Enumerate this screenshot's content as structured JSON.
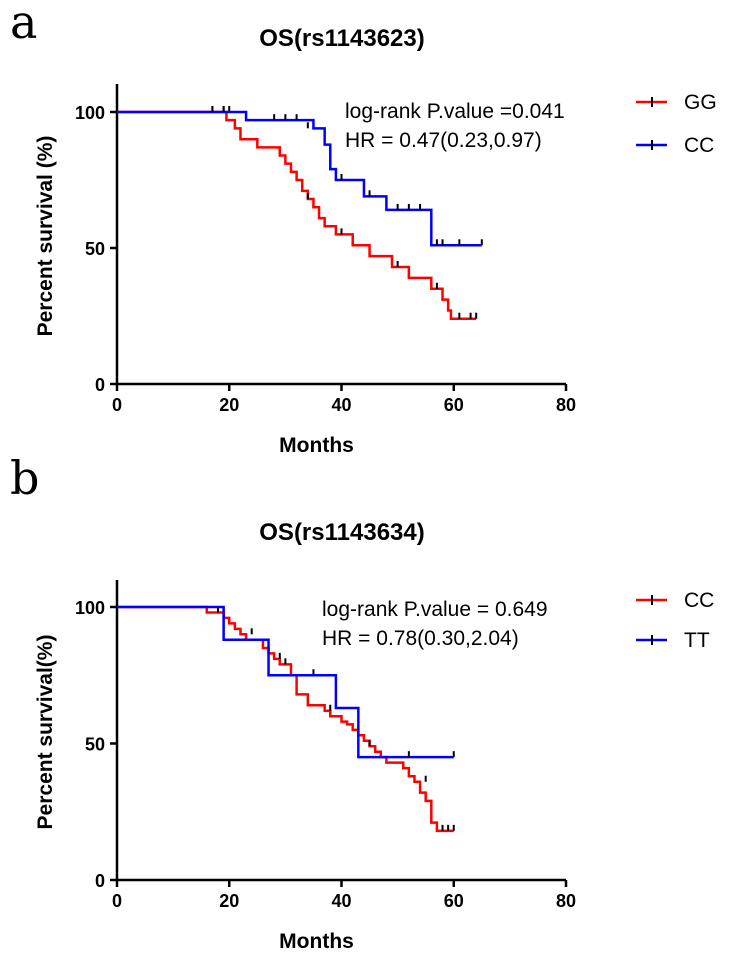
{
  "chart_data": [
    {
      "panel": "a",
      "type": "line",
      "title": "OS(rs1143623)",
      "xlabel": "Months",
      "ylabel": "Percent survival (%)",
      "xlim": [
        0,
        80
      ],
      "ylim": [
        0,
        100
      ],
      "xticks": [
        0,
        20,
        40,
        60,
        80
      ],
      "yticks": [
        0,
        50,
        100
      ],
      "annotations": [
        "log-rank P.value =0.041",
        "HR = 0.47(0.23,0.97)"
      ],
      "series": [
        {
          "name": "GG",
          "color": "#ff0000",
          "steps": [
            [
              0,
              100
            ],
            [
              19,
              100
            ],
            [
              19.5,
              97
            ],
            [
              21,
              94
            ],
            [
              22,
              90
            ],
            [
              25,
              87
            ],
            [
              29,
              84
            ],
            [
              30,
              81
            ],
            [
              31,
              78
            ],
            [
              32,
              75
            ],
            [
              33,
              71
            ],
            [
              34,
              68
            ],
            [
              35,
              65
            ],
            [
              36,
              61
            ],
            [
              37,
              58
            ],
            [
              39,
              55
            ],
            [
              42,
              51
            ],
            [
              45,
              47
            ],
            [
              49,
              43
            ],
            [
              52,
              39
            ],
            [
              56,
              35
            ],
            [
              58,
              31
            ],
            [
              59,
              27
            ],
            [
              59.5,
              24
            ],
            [
              64,
              24
            ]
          ],
          "censored": [
            [
              17,
              100
            ],
            [
              19,
              100
            ],
            [
              20,
              100
            ],
            [
              34,
              68
            ],
            [
              40,
              55
            ],
            [
              50,
              43
            ],
            [
              57,
              35
            ],
            [
              61,
              24
            ],
            [
              63,
              24
            ],
            [
              64,
              24
            ]
          ]
        },
        {
          "name": "CC",
          "color": "#0000ff",
          "steps": [
            [
              0,
              100
            ],
            [
              19,
              100
            ],
            [
              20,
              100
            ],
            [
              23,
              97
            ],
            [
              34,
              97
            ],
            [
              35,
              94
            ],
            [
              37,
              88
            ],
            [
              38,
              79
            ],
            [
              39,
              75
            ],
            [
              44,
              69
            ],
            [
              48,
              64
            ],
            [
              56,
              64
            ],
            [
              56,
              51
            ],
            [
              65,
              51
            ]
          ],
          "censored": [
            [
              17,
              100
            ],
            [
              19,
              100
            ],
            [
              28,
              97
            ],
            [
              30,
              97
            ],
            [
              32,
              97
            ],
            [
              34,
              94
            ],
            [
              40,
              75
            ],
            [
              45,
              69
            ],
            [
              50,
              64
            ],
            [
              52,
              64
            ],
            [
              54,
              64
            ],
            [
              57,
              51
            ],
            [
              58,
              51
            ],
            [
              61,
              51
            ],
            [
              65,
              51
            ]
          ]
        }
      ]
    },
    {
      "panel": "b",
      "type": "line",
      "title": "OS(rs1143634)",
      "xlabel": "Months",
      "ylabel": "Percent survival(%)",
      "xlim": [
        0,
        80
      ],
      "ylim": [
        0,
        100
      ],
      "xticks": [
        0,
        20,
        40,
        60,
        80
      ],
      "yticks": [
        0,
        50,
        100
      ],
      "annotations": [
        "log-rank P.value = 0.649",
        "HR = 0.78(0.30,2.04)"
      ],
      "series": [
        {
          "name": "CC",
          "color": "#ff0000",
          "steps": [
            [
              0,
              100
            ],
            [
              16,
              100
            ],
            [
              16,
              98
            ],
            [
              19,
              98
            ],
            [
              19,
              96
            ],
            [
              20,
              96
            ],
            [
              20,
              94
            ],
            [
              21,
              94
            ],
            [
              21,
              92
            ],
            [
              22,
              92
            ],
            [
              22,
              90
            ],
            [
              23,
              90
            ],
            [
              23,
              88
            ],
            [
              26,
              88
            ],
            [
              26,
              85
            ],
            [
              27,
              85
            ],
            [
              27,
              83
            ],
            [
              28,
              83
            ],
            [
              28,
              81
            ],
            [
              29,
              81
            ],
            [
              29,
              79
            ],
            [
              30,
              79
            ],
            [
              31,
              79
            ],
            [
              31,
              75
            ],
            [
              32,
              75
            ],
            [
              32,
              68
            ],
            [
              34,
              68
            ],
            [
              34,
              64
            ],
            [
              37,
              64
            ],
            [
              37,
              62
            ],
            [
              38,
              62
            ],
            [
              38,
              60
            ],
            [
              40,
              60
            ],
            [
              40,
              58
            ],
            [
              41,
              58
            ],
            [
              41,
              57
            ],
            [
              42,
              57
            ],
            [
              42,
              55
            ],
            [
              43,
              55
            ],
            [
              43,
              53
            ],
            [
              44,
              53
            ],
            [
              44,
              51
            ],
            [
              45,
              51
            ],
            [
              45,
              49
            ],
            [
              46,
              49
            ],
            [
              46,
              47
            ],
            [
              47,
              47
            ],
            [
              47,
              45
            ],
            [
              48,
              45
            ],
            [
              48,
              43
            ],
            [
              51,
              43
            ],
            [
              51,
              41
            ],
            [
              52,
              41
            ],
            [
              52,
              38
            ],
            [
              53,
              38
            ],
            [
              53,
              36
            ],
            [
              54,
              36
            ],
            [
              54,
              32
            ],
            [
              55,
              32
            ],
            [
              55,
              29
            ],
            [
              56,
              29
            ],
            [
              56,
              21
            ],
            [
              57,
              21
            ],
            [
              57,
              18
            ],
            [
              60,
              18
            ]
          ],
          "censored": [
            [
              18,
              98
            ],
            [
              24,
              90
            ],
            [
              29,
              81
            ],
            [
              30,
              79
            ],
            [
              35,
              75
            ],
            [
              38,
              62
            ],
            [
              45,
              49
            ],
            [
              55,
              36
            ],
            [
              58,
              18
            ],
            [
              59,
              18
            ],
            [
              60,
              18
            ]
          ]
        },
        {
          "name": "TT",
          "color": "#0000ff",
          "steps": [
            [
              0,
              100
            ],
            [
              19,
              100
            ],
            [
              19,
              88
            ],
            [
              27,
              88
            ],
            [
              27,
              75
            ],
            [
              39,
              75
            ],
            [
              39,
              63
            ],
            [
              43,
              63
            ],
            [
              43,
              45
            ],
            [
              60,
              45
            ]
          ],
          "censored": [
            [
              52,
              45
            ],
            [
              60,
              45
            ]
          ]
        }
      ]
    }
  ]
}
